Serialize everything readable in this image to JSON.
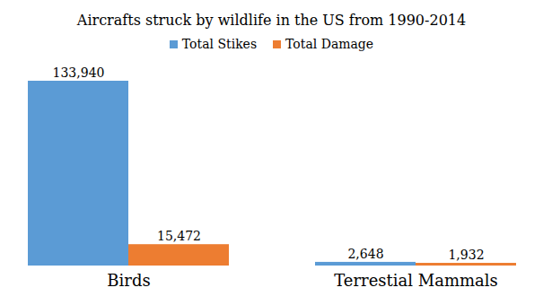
{
  "chart_data": {
    "type": "bar",
    "title": "Aircrafts struck by wildlife in the US from 1990-2014",
    "categories": [
      "Birds",
      "Terrestial Mammals"
    ],
    "series": [
      {
        "name": "Total Stikes",
        "color": "#5b9bd5",
        "values": [
          133940,
          2648
        ],
        "value_labels": [
          "133,940",
          "2,648"
        ]
      },
      {
        "name": "Total Damage",
        "color": "#ed7d31",
        "values": [
          15472,
          1932
        ],
        "value_labels": [
          "15,472",
          "1,932"
        ]
      }
    ],
    "legend": "top",
    "data_labels": true,
    "tick_labels": "x"
  }
}
